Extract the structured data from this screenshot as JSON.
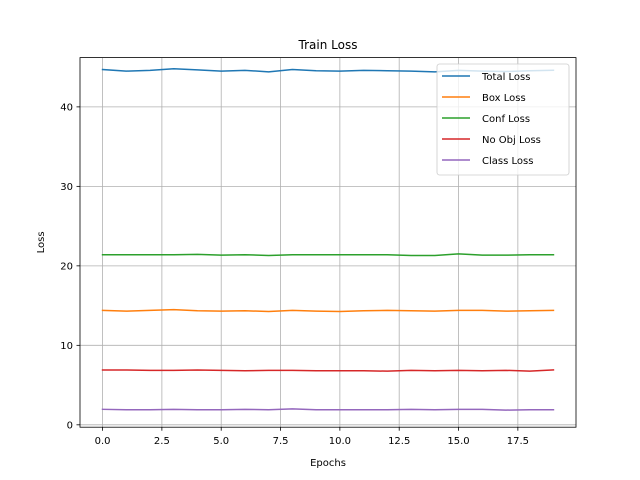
{
  "chart_data": {
    "type": "line",
    "title": "Train Loss",
    "xlabel": "Epochs",
    "ylabel": "Loss",
    "xlim": [
      -0.95,
      19.95
    ],
    "ylim": [
      -0.3,
      46.2
    ],
    "xticks": [
      0.0,
      2.5,
      5.0,
      7.5,
      10.0,
      12.5,
      15.0,
      17.5
    ],
    "xtick_labels": [
      "0.0",
      "2.5",
      "5.0",
      "7.5",
      "10.0",
      "12.5",
      "15.0",
      "17.5"
    ],
    "yticks": [
      0,
      10,
      20,
      30,
      40
    ],
    "ytick_labels": [
      "0",
      "10",
      "20",
      "30",
      "40"
    ],
    "grid": true,
    "legend_position": "top-right",
    "x": [
      0,
      1,
      2,
      3,
      4,
      5,
      6,
      7,
      8,
      9,
      10,
      11,
      12,
      13,
      14,
      15,
      16,
      17,
      18,
      19
    ],
    "series": [
      {
        "name": "Total Loss",
        "color": "#1f77b4",
        "values": [
          44.7,
          44.5,
          44.6,
          44.8,
          44.65,
          44.5,
          44.6,
          44.4,
          44.7,
          44.55,
          44.5,
          44.6,
          44.55,
          44.5,
          44.4,
          44.6,
          44.5,
          44.45,
          44.55,
          44.6
        ]
      },
      {
        "name": "Box Loss",
        "color": "#ff7f0e",
        "values": [
          14.4,
          14.3,
          14.4,
          14.5,
          14.35,
          14.3,
          14.35,
          14.25,
          14.4,
          14.3,
          14.25,
          14.35,
          14.4,
          14.35,
          14.3,
          14.4,
          14.4,
          14.3,
          14.35,
          14.4
        ]
      },
      {
        "name": "Conf Loss",
        "color": "#2ca02c",
        "values": [
          21.4,
          21.4,
          21.4,
          21.4,
          21.45,
          21.35,
          21.4,
          21.3,
          21.4,
          21.4,
          21.4,
          21.4,
          21.4,
          21.3,
          21.3,
          21.5,
          21.35,
          21.35,
          21.4,
          21.4
        ]
      },
      {
        "name": "No Obj Loss",
        "color": "#d62728",
        "values": [
          6.9,
          6.9,
          6.85,
          6.85,
          6.9,
          6.85,
          6.8,
          6.85,
          6.85,
          6.8,
          6.8,
          6.8,
          6.75,
          6.85,
          6.8,
          6.85,
          6.8,
          6.85,
          6.75,
          6.9
        ]
      },
      {
        "name": "Class Loss",
        "color": "#9467bd",
        "values": [
          1.95,
          1.9,
          1.9,
          1.95,
          1.9,
          1.9,
          1.95,
          1.9,
          2.0,
          1.9,
          1.9,
          1.9,
          1.9,
          1.95,
          1.9,
          1.95,
          1.95,
          1.85,
          1.9,
          1.9
        ]
      }
    ]
  }
}
